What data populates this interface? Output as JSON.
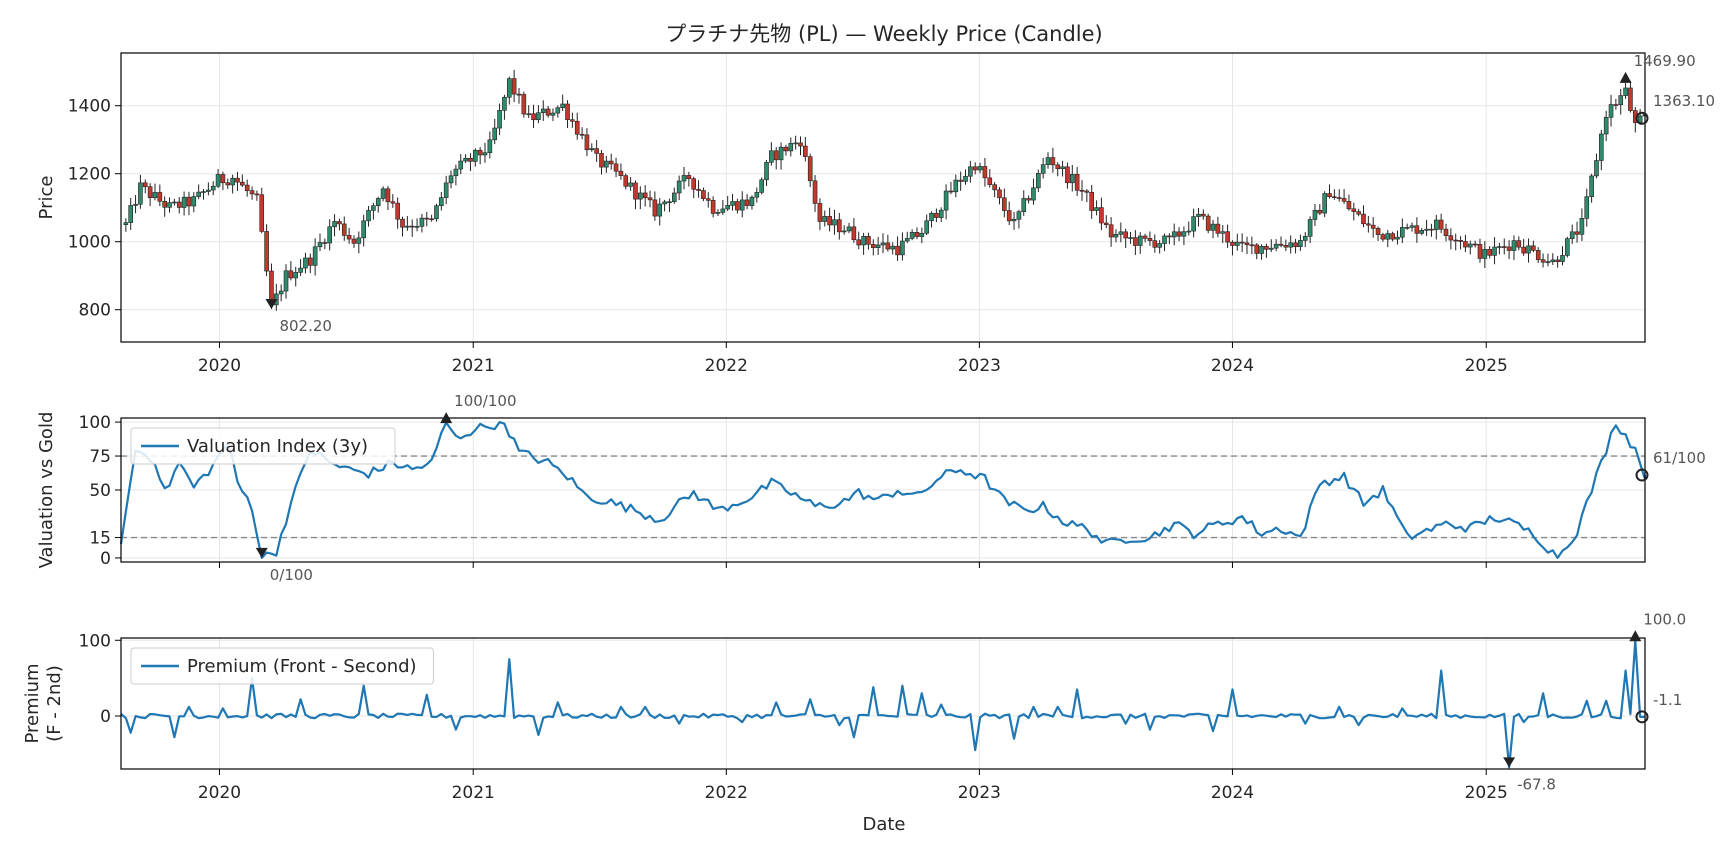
{
  "title": "プラチナ先物 (PL) — Weekly Price (Candle)",
  "colors": {
    "up": "#2e8b6e",
    "down": "#c0392b",
    "wick": "#222222",
    "line": "#1f77b4",
    "ref": "#888888",
    "grid": "#e6e6e6",
    "marker": "#222222"
  },
  "chart_data": [
    {
      "type": "candlestick",
      "ylabel": "Price",
      "ylim": [
        705,
        1555
      ],
      "xlim": [
        "2019-08-12",
        "2025-08-18"
      ],
      "yticks": [
        800,
        1000,
        1200,
        1400
      ],
      "xticks": [
        "2020",
        "2021",
        "2022",
        "2023",
        "2024",
        "2025"
      ],
      "grid": true,
      "anchors": [
        [
          "2019-08-19",
          1050
        ],
        [
          "2019-09-09",
          1160
        ],
        [
          "2019-10-21",
          1100
        ],
        [
          "2019-11-25",
          1120
        ],
        [
          "2019-12-30",
          1180
        ],
        [
          "2020-01-20",
          1190
        ],
        [
          "2020-02-24",
          1120
        ],
        [
          "2020-03-16",
          802
        ],
        [
          "2020-04-06",
          900
        ],
        [
          "2020-05-11",
          950
        ],
        [
          "2020-06-15",
          1060
        ],
        [
          "2020-07-13",
          1000
        ],
        [
          "2020-08-24",
          1160
        ],
        [
          "2020-09-21",
          1050
        ],
        [
          "2020-11-02",
          1060
        ],
        [
          "2020-11-30",
          1200
        ],
        [
          "2020-12-28",
          1240
        ],
        [
          "2021-01-25",
          1280
        ],
        [
          "2021-02-22",
          1470
        ],
        [
          "2021-03-22",
          1360
        ],
        [
          "2021-05-10",
          1400
        ],
        [
          "2021-06-28",
          1240
        ],
        [
          "2021-07-26",
          1200
        ],
        [
          "2021-09-20",
          1090
        ],
        [
          "2021-11-08",
          1190
        ],
        [
          "2021-12-13",
          1100
        ],
        [
          "2022-02-07",
          1120
        ],
        [
          "2022-03-07",
          1250
        ],
        [
          "2022-04-18",
          1300
        ],
        [
          "2022-05-16",
          1060
        ],
        [
          "2022-06-20",
          1040
        ],
        [
          "2022-07-18",
          1000
        ],
        [
          "2022-09-05",
          980
        ],
        [
          "2022-10-10",
          1030
        ],
        [
          "2022-11-28",
          1170
        ],
        [
          "2022-12-26",
          1230
        ],
        [
          "2023-02-20",
          1050
        ],
        [
          "2023-04-10",
          1250
        ],
        [
          "2023-05-29",
          1150
        ],
        [
          "2023-07-10",
          1020
        ],
        [
          "2023-08-21",
          1000
        ],
        [
          "2023-10-02",
          1000
        ],
        [
          "2023-11-13",
          1070
        ],
        [
          "2024-01-15",
          980
        ],
        [
          "2024-04-08",
          1000
        ],
        [
          "2024-05-20",
          1150
        ],
        [
          "2024-07-29",
          1020
        ],
        [
          "2024-10-21",
          1050
        ],
        [
          "2024-12-30",
          960
        ],
        [
          "2025-02-10",
          1000
        ],
        [
          "2025-04-07",
          940
        ],
        [
          "2025-05-19",
          1050
        ],
        [
          "2025-06-23",
          1380
        ],
        [
          "2025-07-21",
          1440
        ],
        [
          "2025-08-04",
          1340
        ],
        [
          "2025-08-18",
          1363
        ]
      ],
      "annotations": [
        {
          "date": "2020-03-16",
          "value": 802.2,
          "label": "802.20",
          "kind": "low"
        },
        {
          "date": "2025-07-21",
          "value": 1469.9,
          "label": "1469.90",
          "kind": "high"
        },
        {
          "date": "2025-08-18",
          "value": 1363.1,
          "label": "1363.10",
          "kind": "last"
        }
      ]
    },
    {
      "type": "line",
      "ylabel": "Valuation vs Gold",
      "ylim": [
        -3,
        103
      ],
      "yticks": [
        0,
        15,
        50,
        75,
        100
      ],
      "reference_lines": [
        15,
        75
      ],
      "series": [
        {
          "name": "Valuation Index (3y)",
          "anchors": [
            [
              "2019-08-12",
              10
            ],
            [
              "2019-09-02",
              80
            ],
            [
              "2019-09-30",
              72
            ],
            [
              "2019-10-14",
              48
            ],
            [
              "2019-11-04",
              70
            ],
            [
              "2019-11-25",
              52
            ],
            [
              "2019-12-23",
              68
            ],
            [
              "2020-01-13",
              85
            ],
            [
              "2020-01-27",
              55
            ],
            [
              "2020-02-17",
              38
            ],
            [
              "2020-03-02",
              0
            ],
            [
              "2020-03-23",
              5
            ],
            [
              "2020-04-13",
              40
            ],
            [
              "2020-05-11",
              80
            ],
            [
              "2020-06-08",
              70
            ],
            [
              "2020-07-06",
              65
            ],
            [
              "2020-08-03",
              62
            ],
            [
              "2020-09-07",
              70
            ],
            [
              "2020-10-05",
              65
            ],
            [
              "2020-11-02",
              70
            ],
            [
              "2020-11-23",
              100
            ],
            [
              "2020-12-07",
              88
            ],
            [
              "2021-01-04",
              95
            ],
            [
              "2021-02-15",
              100
            ],
            [
              "2021-03-08",
              78
            ],
            [
              "2021-04-19",
              70
            ],
            [
              "2021-05-17",
              60
            ],
            [
              "2021-06-14",
              45
            ],
            [
              "2021-07-12",
              42
            ],
            [
              "2021-08-23",
              35
            ],
            [
              "2021-09-27",
              28
            ],
            [
              "2021-10-25",
              40
            ],
            [
              "2021-11-15",
              48
            ],
            [
              "2021-12-20",
              35
            ],
            [
              "2022-02-07",
              45
            ],
            [
              "2022-03-07",
              55
            ],
            [
              "2022-04-04",
              48
            ],
            [
              "2022-05-09",
              38
            ],
            [
              "2022-06-13",
              40
            ],
            [
              "2022-07-11",
              48
            ],
            [
              "2022-08-08",
              42
            ],
            [
              "2022-09-05",
              50
            ],
            [
              "2022-10-03",
              45
            ],
            [
              "2022-11-07",
              60
            ],
            [
              "2022-12-05",
              65
            ],
            [
              "2023-01-09",
              58
            ],
            [
              "2023-02-06",
              42
            ],
            [
              "2023-03-06",
              35
            ],
            [
              "2023-04-03",
              38
            ],
            [
              "2023-05-08",
              25
            ],
            [
              "2023-06-05",
              22
            ],
            [
              "2023-07-03",
              10
            ],
            [
              "2023-08-07",
              15
            ],
            [
              "2023-09-04",
              15
            ],
            [
              "2023-10-09",
              25
            ],
            [
              "2023-11-06",
              18
            ],
            [
              "2023-12-11",
              25
            ],
            [
              "2024-01-15",
              30
            ],
            [
              "2024-02-12",
              18
            ],
            [
              "2024-03-11",
              22
            ],
            [
              "2024-04-08",
              15
            ],
            [
              "2024-05-06",
              55
            ],
            [
              "2024-06-10",
              60
            ],
            [
              "2024-07-08",
              40
            ],
            [
              "2024-08-05",
              50
            ],
            [
              "2024-09-09",
              15
            ],
            [
              "2024-10-07",
              20
            ],
            [
              "2024-11-04",
              25
            ],
            [
              "2024-12-09",
              22
            ],
            [
              "2025-01-13",
              30
            ],
            [
              "2025-02-10",
              25
            ],
            [
              "2025-03-10",
              18
            ],
            [
              "2025-04-14",
              0
            ],
            [
              "2025-05-12",
              20
            ],
            [
              "2025-06-09",
              60
            ],
            [
              "2025-07-07",
              100
            ],
            [
              "2025-08-04",
              80
            ],
            [
              "2025-08-18",
              61
            ]
          ]
        }
      ],
      "annotations": [
        {
          "date": "2020-03-02",
          "value": 0,
          "label": "0/100",
          "kind": "low"
        },
        {
          "date": "2020-11-23",
          "value": 100,
          "label": "100/100",
          "kind": "high"
        },
        {
          "date": "2025-08-18",
          "value": 61,
          "label": "61/100",
          "kind": "last"
        }
      ]
    },
    {
      "type": "line",
      "ylabel": "Premium\n(F - 2nd)",
      "xlabel": "Date",
      "ylim": [
        -70,
        103
      ],
      "yticks": [
        0,
        100
      ],
      "reference_lines": [
        0
      ],
      "series": [
        {
          "name": "Premium (Front - Second)",
          "spikes": [
            [
              "2019-08-26",
              -22
            ],
            [
              "2019-10-28",
              -28
            ],
            [
              "2019-11-18",
              12
            ],
            [
              "2020-01-06",
              10
            ],
            [
              "2020-02-17",
              50
            ],
            [
              "2020-04-27",
              22
            ],
            [
              "2020-07-27",
              40
            ],
            [
              "2020-10-26",
              28
            ],
            [
              "2020-12-07",
              -18
            ],
            [
              "2021-02-22",
              75
            ],
            [
              "2021-04-05",
              -25
            ],
            [
              "2021-05-03",
              18
            ],
            [
              "2021-08-02",
              12
            ],
            [
              "2021-09-06",
              12
            ],
            [
              "2021-10-25",
              -10
            ],
            [
              "2022-01-24",
              -8
            ],
            [
              "2022-03-14",
              18
            ],
            [
              "2022-05-02",
              22
            ],
            [
              "2022-06-13",
              -12
            ],
            [
              "2022-07-04",
              -28
            ],
            [
              "2022-08-01",
              38
            ],
            [
              "2022-09-12",
              40
            ],
            [
              "2022-10-10",
              30
            ],
            [
              "2022-11-07",
              15
            ],
            [
              "2022-12-26",
              -45
            ],
            [
              "2023-02-20",
              -30
            ],
            [
              "2023-03-20",
              12
            ],
            [
              "2023-04-24",
              12
            ],
            [
              "2023-05-22",
              35
            ],
            [
              "2023-07-31",
              -10
            ],
            [
              "2023-09-04",
              -18
            ],
            [
              "2023-12-04",
              -20
            ],
            [
              "2024-01-01",
              35
            ],
            [
              "2024-04-15",
              -10
            ],
            [
              "2024-06-03",
              12
            ],
            [
              "2024-07-01",
              -12
            ],
            [
              "2024-09-02",
              10
            ],
            [
              "2024-10-28",
              60
            ],
            [
              "2025-02-03",
              -67.8
            ],
            [
              "2025-02-24",
              -8
            ],
            [
              "2025-03-24",
              30
            ],
            [
              "2025-05-26",
              20
            ],
            [
              "2025-06-23",
              20
            ],
            [
              "2025-07-21",
              60
            ],
            [
              "2025-08-04",
              100
            ],
            [
              "2025-08-18",
              -1.1
            ]
          ]
        }
      ],
      "annotations": [
        {
          "date": "2025-02-03",
          "value": -67.8,
          "label": "-67.8",
          "kind": "low"
        },
        {
          "date": "2025-08-04",
          "value": 100,
          "label": "100.0",
          "kind": "high"
        },
        {
          "date": "2025-08-18",
          "value": -1.1,
          "label": "-1.1",
          "kind": "last"
        }
      ]
    }
  ]
}
